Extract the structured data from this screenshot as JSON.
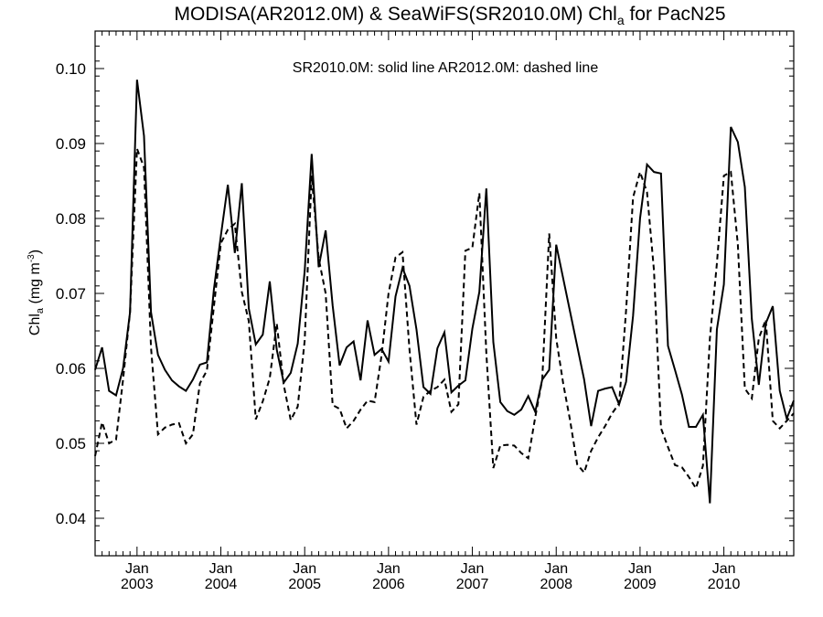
{
  "chart_data": {
    "type": "line",
    "title_main": "MODISA(AR2012.0M) & SeaWiFS(SR2010.0M)  Chl",
    "title_sub": "a",
    "title_tail": " for PacN25",
    "annotation": "SR2010.0M: solid line   AR2012.0M: dashed line",
    "ylabel_main": "Chl",
    "ylabel_sub": "a",
    "ylabel_unit": " (mg m",
    "ylabel_sup": "-3",
    "ylabel_close": ")",
    "ylim": [
      0.035,
      0.105
    ],
    "y_ticks": [
      "0.04",
      "0.05",
      "0.06",
      "0.07",
      "0.08",
      "0.09",
      "0.10"
    ],
    "x_range": [
      "2002-07-01",
      "2010-11-01"
    ],
    "x_ticks": [
      {
        "month": "Jan",
        "year": "2003",
        "date": "2003-01-01"
      },
      {
        "month": "Jan",
        "year": "2004",
        "date": "2004-01-01"
      },
      {
        "month": "Jan",
        "year": "2005",
        "date": "2005-01-01"
      },
      {
        "month": "Jan",
        "year": "2006",
        "date": "2006-01-01"
      },
      {
        "month": "Jan",
        "year": "2007",
        "date": "2007-01-01"
      },
      {
        "month": "Jan",
        "year": "2008",
        "date": "2008-01-01"
      },
      {
        "month": "Jan",
        "year": "2009",
        "date": "2009-01-01"
      },
      {
        "month": "Jan",
        "year": "2010",
        "date": "2010-01-01"
      }
    ],
    "grid": false,
    "series": [
      {
        "style": "solid",
        "start": "2002-07",
        "values": [
          0.0598,
          0.0628,
          0.057,
          0.0564,
          0.06,
          0.0675,
          0.0985,
          0.091,
          0.0675,
          0.0618,
          0.0598,
          0.0584,
          0.0576,
          0.057,
          0.0585,
          0.0605,
          0.0608,
          0.0705,
          0.0777,
          0.0845,
          0.0754,
          0.0847,
          0.068,
          0.0632,
          0.0645,
          0.0716,
          0.0625,
          0.0581,
          0.0594,
          0.0633,
          0.073,
          0.0886,
          0.0735,
          0.0784,
          0.0684,
          0.0604,
          0.0628,
          0.0636,
          0.0584,
          0.0664,
          0.0618,
          0.0626,
          0.0609,
          0.0696,
          0.0734,
          0.071,
          0.0652,
          0.0575,
          0.0566,
          0.0627,
          0.0648,
          0.0568,
          0.0577,
          0.0584,
          0.0653,
          0.0702,
          0.084,
          0.0635,
          0.0555,
          0.0543,
          0.0538,
          0.0545,
          0.0563,
          0.0542,
          0.0585,
          0.0598,
          0.0765,
          0.072,
          0.0675,
          0.063,
          0.0585,
          0.0523,
          0.057,
          0.0573,
          0.0575,
          0.0552,
          0.0582,
          0.067,
          0.08,
          0.0872,
          0.0862,
          0.086,
          0.063,
          0.0598,
          0.0565,
          0.0522,
          0.0522,
          0.0538,
          0.042,
          0.0652,
          0.0712,
          0.0922,
          0.0902,
          0.0842,
          0.0666,
          0.0578,
          0.066,
          0.0683,
          0.057,
          0.0533,
          0.0557
        ]
      },
      {
        "style": "dashed",
        "start": "2002-07",
        "values": [
          0.0483,
          0.0528,
          0.05,
          0.0505,
          0.0585,
          0.0675,
          0.0893,
          0.0868,
          0.0628,
          0.0512,
          0.0521,
          0.0525,
          0.0527,
          0.05,
          0.0512,
          0.058,
          0.0597,
          0.0682,
          0.0767,
          0.0785,
          0.0793,
          0.0702,
          0.0663,
          0.0532,
          0.0556,
          0.0587,
          0.066,
          0.0578,
          0.0531,
          0.0549,
          0.0637,
          0.0857,
          0.0747,
          0.07,
          0.0551,
          0.0546,
          0.052,
          0.053,
          0.0545,
          0.0557,
          0.0555,
          0.0617,
          0.07,
          0.0748,
          0.0755,
          0.0625,
          0.0525,
          0.0562,
          0.057,
          0.0575,
          0.0585,
          0.0542,
          0.0552,
          0.0757,
          0.0761,
          0.0834,
          0.062,
          0.0467,
          0.0497,
          0.0498,
          0.0497,
          0.0487,
          0.048,
          0.0535,
          0.0585,
          0.078,
          0.064,
          0.058,
          0.053,
          0.0472,
          0.0461,
          0.049,
          0.0508,
          0.0523,
          0.054,
          0.0553,
          0.0677,
          0.0828,
          0.0862,
          0.0835,
          0.073,
          0.052,
          0.0495,
          0.0471,
          0.0468,
          0.0455,
          0.044,
          0.047,
          0.064,
          0.074,
          0.0857,
          0.0862,
          0.0765,
          0.0573,
          0.056,
          0.064,
          0.0665,
          0.053,
          0.052,
          0.053,
          0.054
        ]
      }
    ]
  }
}
